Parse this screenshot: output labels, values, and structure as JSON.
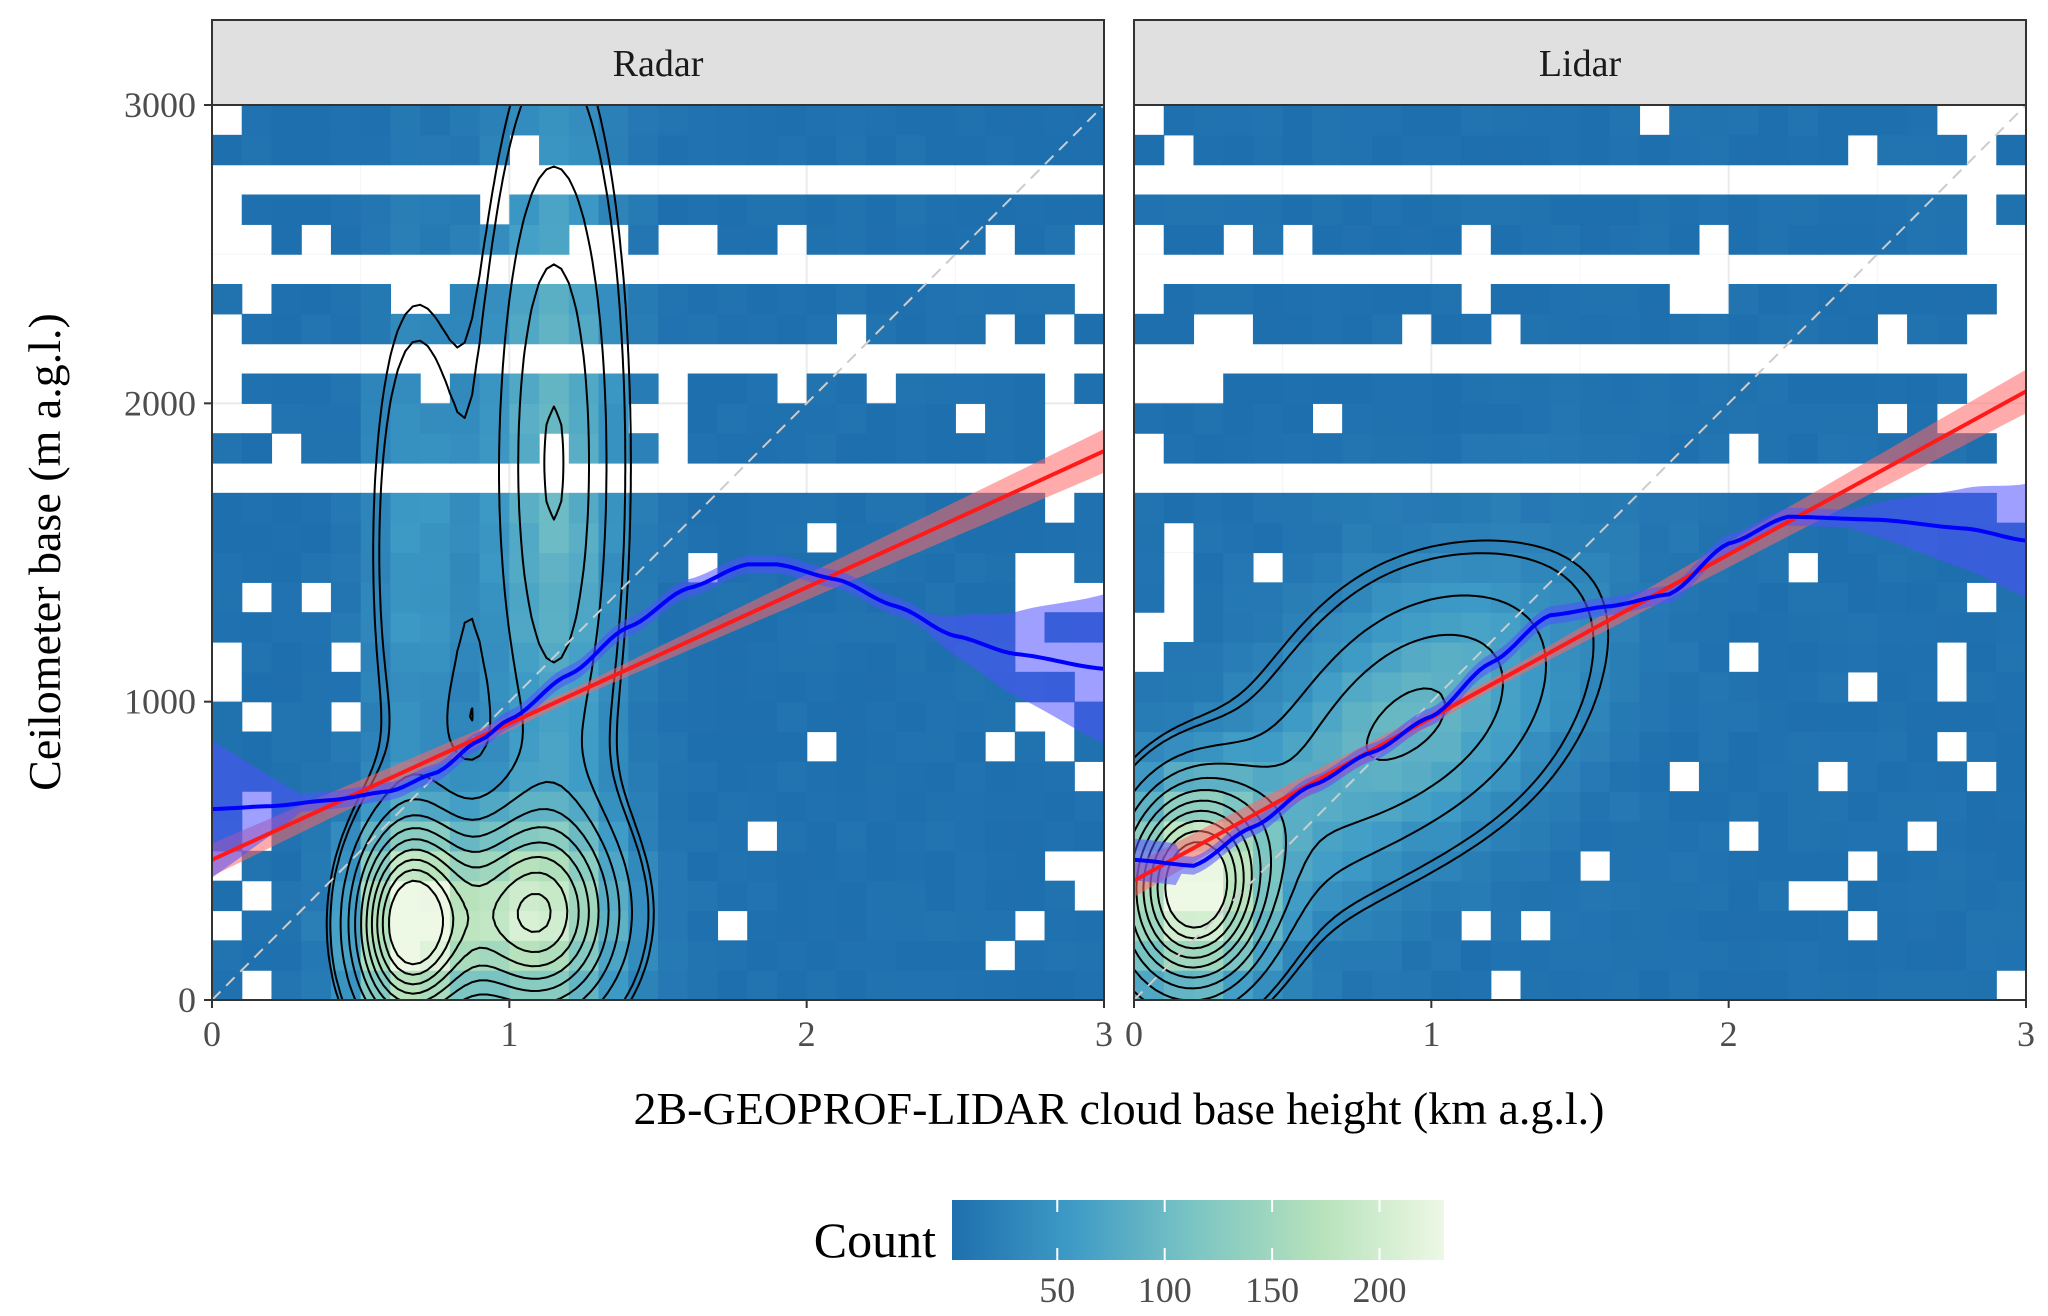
{
  "chart_data": {
    "type": "heatmap",
    "xlabel": "2B-GEOPROF-LIDAR cloud base height (km a.g.l.)",
    "ylabel": "Ceilometer base (m a.g.l.)",
    "xlim": [
      0,
      3
    ],
    "ylim": [
      0,
      3000
    ],
    "x_ticks": [
      "0",
      "1",
      "2",
      "3"
    ],
    "y_ticks": [
      "0",
      "1000",
      "2000",
      "3000"
    ],
    "grid": true,
    "legend": {
      "title": "Count",
      "position": "bottom",
      "ticks": [
        "50",
        "100",
        "150",
        "200"
      ],
      "tick_values": [
        50,
        100,
        150,
        200
      ],
      "range": [
        1,
        230
      ],
      "colors": [
        "#1e6fae",
        "#3f9cc6",
        "#7dc6c3",
        "#b7e2bb",
        "#edf8e5"
      ]
    },
    "reference_line": {
      "type": "identity",
      "color": "#cccccc",
      "style": "dashed"
    },
    "panels": [
      {
        "name": "Radar",
        "linear_fit": {
          "color": "#ff1a1a",
          "x": [
            0,
            3
          ],
          "y": [
            470,
            1840
          ]
        },
        "loess_fit": {
          "color": "#0000ff",
          "x": [
            0,
            0.2,
            0.4,
            0.6,
            0.75,
            0.9,
            1.0,
            1.2,
            1.4,
            1.6,
            1.8,
            1.9,
            2.1,
            2.3,
            2.5,
            2.7,
            3.0
          ],
          "y": [
            640,
            650,
            670,
            700,
            760,
            870,
            940,
            1090,
            1250,
            1380,
            1460,
            1460,
            1410,
            1320,
            1220,
            1160,
            1110
          ]
        },
        "density_peaks": [
          [
            0.66,
            250
          ],
          [
            1.08,
            280
          ]
        ],
        "count_peak": 230
      },
      {
        "name": "Lidar",
        "linear_fit": {
          "color": "#ff1a1a",
          "x": [
            0,
            3
          ],
          "y": [
            400,
            2040
          ]
        },
        "loess_fit": {
          "color": "#0000ff",
          "x": [
            0,
            0.2,
            0.4,
            0.6,
            0.8,
            1.0,
            1.2,
            1.4,
            1.6,
            1.8,
            2.0,
            2.2,
            2.5,
            2.8,
            3.0
          ],
          "y": [
            470,
            450,
            580,
            720,
            830,
            950,
            1130,
            1290,
            1320,
            1360,
            1530,
            1620,
            1610,
            1580,
            1540
          ]
        },
        "density_peaks": [
          [
            0.2,
            380
          ]
        ],
        "count_peak": 200
      }
    ]
  }
}
